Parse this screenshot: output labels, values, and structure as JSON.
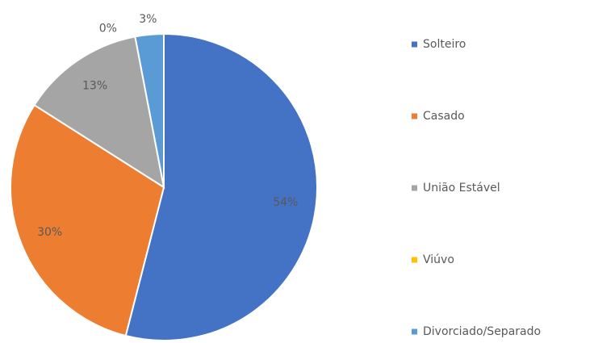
{
  "chart_data": {
    "type": "pie",
    "categories": [
      "Solteiro",
      "Casado",
      "União Estável",
      "Viúvo",
      "Divorciado/Separado"
    ],
    "values": [
      54,
      30,
      13,
      0,
      3
    ],
    "value_labels": [
      "54%",
      "30%",
      "13%",
      "0%",
      "3%"
    ],
    "colors": [
      "#4472c4",
      "#ed7d31",
      "#a5a5a5",
      "#ffc000",
      "#5b9bd5"
    ],
    "legend": "right"
  }
}
